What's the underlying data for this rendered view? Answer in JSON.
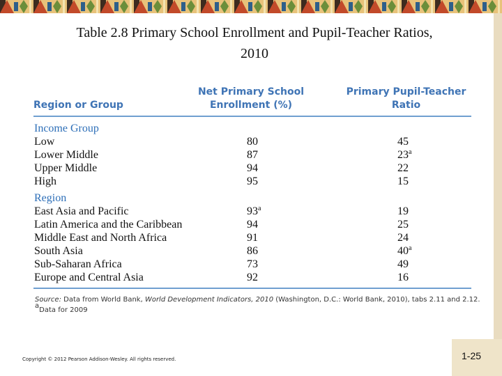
{
  "title": {
    "line1": "Table 2.8  Primary School Enrollment and Pupil-Teacher Ratios,",
    "line2": "2010"
  },
  "table": {
    "headers": [
      "Region or Group",
      "Net Primary School Enrollment (%)",
      "Primary Pupil-Teacher Ratio"
    ],
    "groups": [
      {
        "label": "Income Group",
        "rows": [
          [
            "Low",
            80,
            45
          ],
          [
            "Lower Middle",
            87,
            {
              "value": 23,
              "note": "a"
            }
          ],
          [
            "Upper Middle",
            94,
            22
          ],
          [
            "High",
            95,
            15
          ]
        ]
      },
      {
        "label": "Region",
        "rows": [
          [
            "East Asia and Pacific",
            {
              "value": 93,
              "note": "a"
            },
            19
          ],
          [
            "Latin America and the Caribbean",
            94,
            25
          ],
          [
            "Middle East and North Africa",
            91,
            24
          ],
          [
            "South Asia",
            86,
            {
              "value": 40,
              "note": "a"
            }
          ],
          [
            "Sub-Saharan Africa",
            73,
            49
          ],
          [
            "Europe and Central Asia",
            92,
            16
          ]
        ]
      }
    ]
  },
  "source": [
    {
      "text": "Source:",
      "italic": true
    },
    {
      "text": " Data from World Bank, ",
      "italic": false
    },
    {
      "text": "World Development Indicators, 2010",
      "italic": true
    },
    {
      "text": " (Washington, D.C.: World Bank, 2010), tabs 2.11 and 2.12.",
      "italic": false
    }
  ],
  "footnote": {
    "mark": "a",
    "text": "Data for 2009"
  },
  "copyright": "Copyright © 2012 Pearson Addison-Wesley. All rights reserved.",
  "page_number": "1-25"
}
